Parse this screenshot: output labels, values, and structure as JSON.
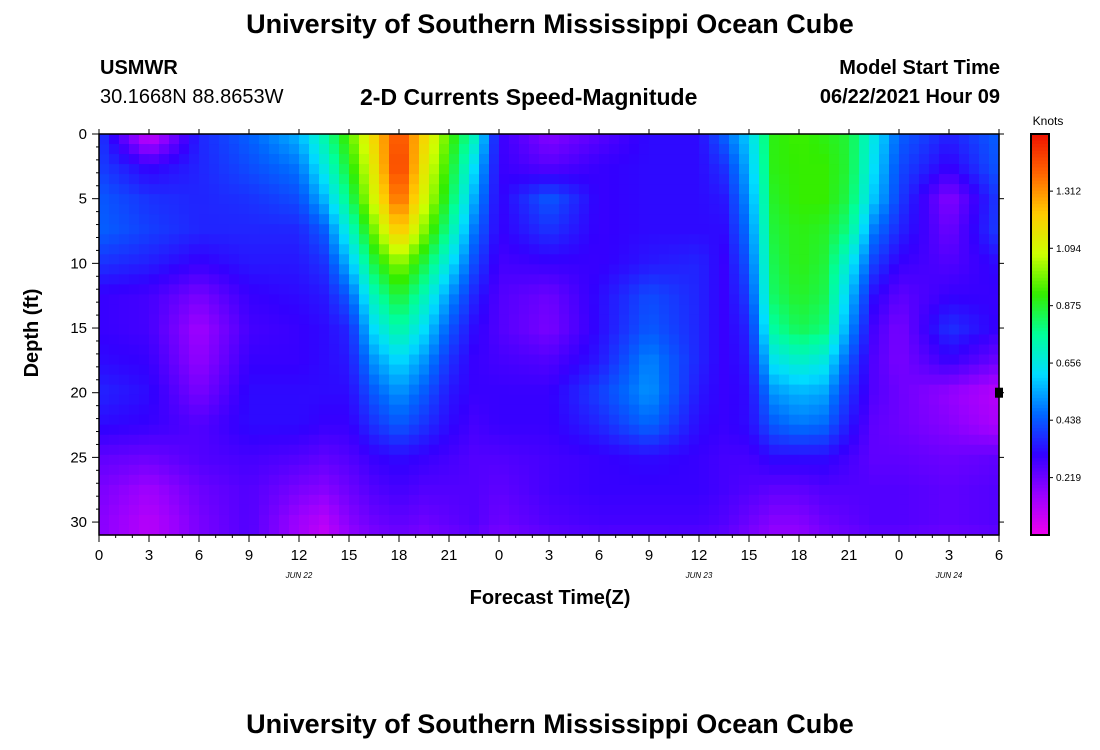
{
  "header": {
    "title": "University of Southern Mississippi Ocean Cube",
    "station_name": "USMWR",
    "station_coords": "30.1668N  88.8653W",
    "product": "2-D Currents Speed-Magnitude",
    "model_label": "Model Start Time",
    "model_time": "06/22/2021 Hour 09"
  },
  "footer": {
    "title": "University of Southern Mississippi Ocean Cube"
  },
  "colorbar": {
    "unit": "Knots",
    "tick_labels": [
      "1.312",
      "1.094",
      "0.875",
      "0.656",
      "0.438",
      "0.219"
    ],
    "tick_values": [
      1.312,
      1.094,
      0.875,
      0.656,
      0.438,
      0.219
    ],
    "range": [
      0,
      1.53
    ],
    "colors": [
      "#ee00ee",
      "#9900ff",
      "#3300ff",
      "#0066ff",
      "#00ddff",
      "#00ff99",
      "#33ee00",
      "#ccff00",
      "#ffcc00",
      "#ff6600",
      "#ee1100"
    ]
  },
  "chart_data": {
    "type": "heatmap",
    "title": "2-D Currents Speed-Magnitude",
    "xlabel": "Forecast Time(Z)",
    "ylabel": "Depth (ft)",
    "x_range_hours": [
      0,
      54
    ],
    "y_range_ft": [
      0,
      31
    ],
    "x_ticks": [
      0,
      3,
      6,
      9,
      12,
      15,
      18,
      21,
      24,
      27,
      30,
      33,
      36,
      39,
      42,
      45,
      48,
      51,
      54
    ],
    "x_tick_labels": [
      "0",
      "3",
      "6",
      "9",
      "12",
      "15",
      "18",
      "21",
      "0",
      "3",
      "6",
      "9",
      "12",
      "15",
      "18",
      "21",
      "0",
      "3",
      "6"
    ],
    "y_ticks": [
      0,
      5,
      10,
      15,
      20,
      25,
      30
    ],
    "y_tick_labels": [
      "0",
      "5",
      "10",
      "15",
      "20",
      "25",
      "30"
    ],
    "date_labels": [
      {
        "hour": 12,
        "text": "JUN 22"
      },
      {
        "hour": 36,
        "text": "JUN 23"
      },
      {
        "hour": 51,
        "text": "JUN 24"
      }
    ],
    "marker": {
      "hour": 54,
      "depth": 20
    },
    "depths_ft": [
      0,
      2.5,
      5,
      7.5,
      10,
      12.5,
      15,
      17.5,
      20,
      22.5,
      25,
      27.5,
      30,
      31
    ],
    "hours": [
      0,
      3,
      6,
      9,
      12,
      13.5,
      15,
      16.5,
      18,
      19.5,
      21,
      22.5,
      24,
      27,
      30,
      33,
      36,
      37.5,
      39,
      40.5,
      42,
      43.5,
      45,
      46.5,
      48,
      51,
      54
    ],
    "speed_knots": [
      [
        0.4,
        0.05,
        0.36,
        0.45,
        0.56,
        0.74,
        0.95,
        1.2,
        1.44,
        1.2,
        0.95,
        0.72,
        0.3,
        0.18,
        0.25,
        0.32,
        0.32,
        0.45,
        0.6,
        0.9,
        0.93,
        0.9,
        0.86,
        0.65,
        0.45,
        0.35,
        0.45
      ],
      [
        0.4,
        0.3,
        0.36,
        0.42,
        0.48,
        0.66,
        0.88,
        1.15,
        1.48,
        1.15,
        0.9,
        0.62,
        0.3,
        0.25,
        0.3,
        0.32,
        0.32,
        0.38,
        0.56,
        0.9,
        0.92,
        0.92,
        0.86,
        0.62,
        0.42,
        0.3,
        0.44
      ],
      [
        0.44,
        0.38,
        0.36,
        0.38,
        0.42,
        0.56,
        0.8,
        1.1,
        1.4,
        1.1,
        0.85,
        0.55,
        0.3,
        0.44,
        0.3,
        0.32,
        0.32,
        0.34,
        0.52,
        0.88,
        0.92,
        0.92,
        0.84,
        0.58,
        0.4,
        0.18,
        0.4
      ],
      [
        0.45,
        0.4,
        0.36,
        0.36,
        0.36,
        0.44,
        0.68,
        0.98,
        1.25,
        1.0,
        0.76,
        0.48,
        0.3,
        0.38,
        0.3,
        0.32,
        0.32,
        0.32,
        0.48,
        0.86,
        0.9,
        0.88,
        0.78,
        0.48,
        0.36,
        0.22,
        0.4
      ],
      [
        0.38,
        0.35,
        0.3,
        0.34,
        0.34,
        0.38,
        0.56,
        0.85,
        1.02,
        0.85,
        0.64,
        0.42,
        0.28,
        0.3,
        0.3,
        0.34,
        0.36,
        0.3,
        0.44,
        0.84,
        0.9,
        0.86,
        0.66,
        0.4,
        0.3,
        0.26,
        0.32
      ],
      [
        0.3,
        0.28,
        0.2,
        0.3,
        0.32,
        0.34,
        0.44,
        0.72,
        0.88,
        0.72,
        0.52,
        0.36,
        0.26,
        0.22,
        0.32,
        0.42,
        0.36,
        0.3,
        0.4,
        0.82,
        0.88,
        0.84,
        0.58,
        0.32,
        0.24,
        0.3,
        0.3
      ],
      [
        0.3,
        0.28,
        0.14,
        0.28,
        0.3,
        0.32,
        0.36,
        0.62,
        0.76,
        0.62,
        0.44,
        0.32,
        0.26,
        0.2,
        0.32,
        0.44,
        0.36,
        0.3,
        0.36,
        0.76,
        0.84,
        0.8,
        0.52,
        0.28,
        0.2,
        0.38,
        0.3
      ],
      [
        0.32,
        0.3,
        0.16,
        0.3,
        0.3,
        0.32,
        0.34,
        0.52,
        0.62,
        0.52,
        0.38,
        0.3,
        0.28,
        0.26,
        0.34,
        0.5,
        0.36,
        0.3,
        0.34,
        0.64,
        0.7,
        0.66,
        0.44,
        0.26,
        0.2,
        0.3,
        0.22
      ],
      [
        0.36,
        0.32,
        0.2,
        0.32,
        0.32,
        0.32,
        0.32,
        0.44,
        0.52,
        0.44,
        0.34,
        0.3,
        0.3,
        0.3,
        0.4,
        0.52,
        0.34,
        0.3,
        0.32,
        0.52,
        0.56,
        0.54,
        0.38,
        0.26,
        0.22,
        0.16,
        0.1
      ],
      [
        0.32,
        0.3,
        0.26,
        0.32,
        0.32,
        0.3,
        0.3,
        0.38,
        0.44,
        0.38,
        0.32,
        0.28,
        0.3,
        0.3,
        0.36,
        0.46,
        0.32,
        0.3,
        0.32,
        0.44,
        0.48,
        0.46,
        0.34,
        0.24,
        0.22,
        0.18,
        0.12
      ],
      [
        0.24,
        0.22,
        0.26,
        0.28,
        0.26,
        0.24,
        0.26,
        0.3,
        0.32,
        0.3,
        0.28,
        0.26,
        0.26,
        0.28,
        0.3,
        0.32,
        0.3,
        0.28,
        0.28,
        0.32,
        0.32,
        0.32,
        0.28,
        0.24,
        0.24,
        0.22,
        0.24
      ],
      [
        0.2,
        0.14,
        0.22,
        0.26,
        0.2,
        0.18,
        0.22,
        0.26,
        0.28,
        0.26,
        0.26,
        0.26,
        0.24,
        0.28,
        0.3,
        0.3,
        0.3,
        0.28,
        0.26,
        0.24,
        0.24,
        0.26,
        0.26,
        0.26,
        0.26,
        0.24,
        0.26
      ],
      [
        0.18,
        0.1,
        0.2,
        0.26,
        0.14,
        0.1,
        0.18,
        0.22,
        0.24,
        0.22,
        0.24,
        0.26,
        0.22,
        0.26,
        0.28,
        0.28,
        0.28,
        0.26,
        0.22,
        0.18,
        0.18,
        0.22,
        0.24,
        0.26,
        0.26,
        0.24,
        0.26
      ],
      [
        0.18,
        0.1,
        0.2,
        0.26,
        0.14,
        0.08,
        0.16,
        0.2,
        0.22,
        0.2,
        0.22,
        0.24,
        0.2,
        0.24,
        0.26,
        0.26,
        0.26,
        0.24,
        0.2,
        0.16,
        0.16,
        0.2,
        0.22,
        0.24,
        0.24,
        0.22,
        0.24
      ]
    ]
  }
}
